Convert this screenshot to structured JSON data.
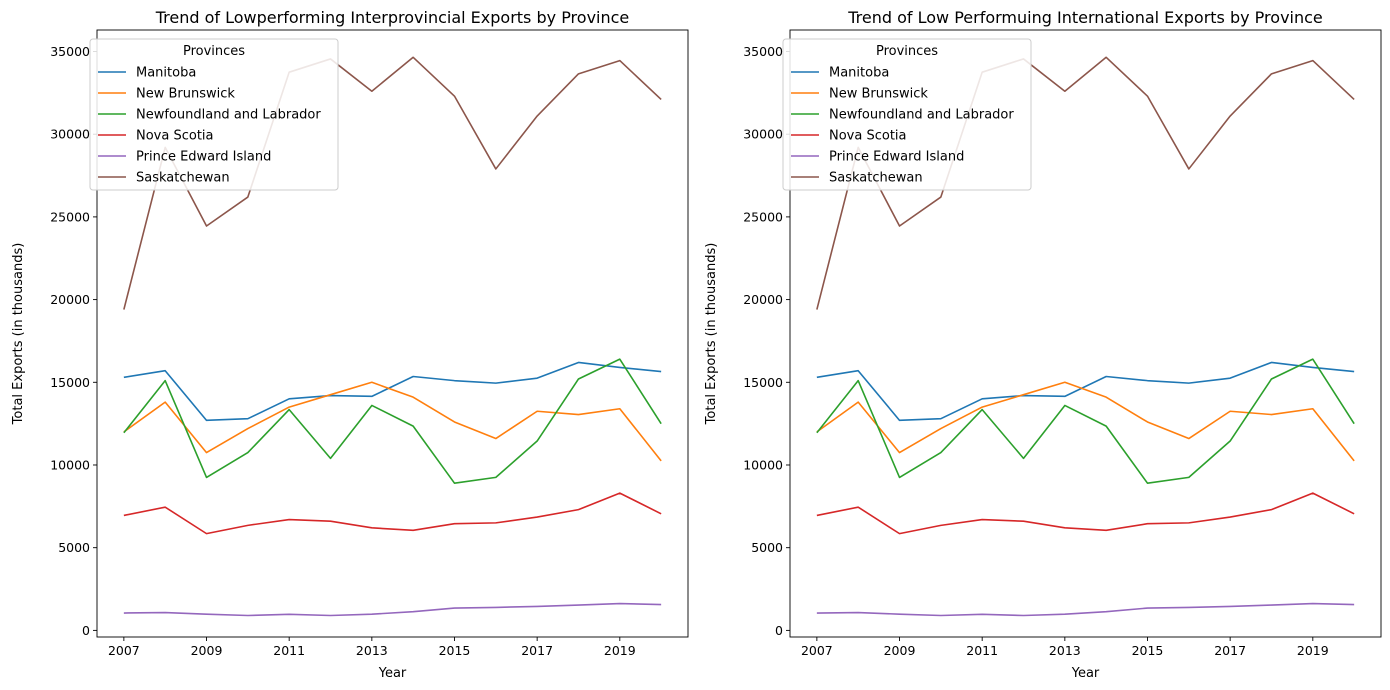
{
  "chart_data": [
    {
      "type": "line",
      "title": "Trend of Lowperforming Interprovincial Exports by Province",
      "xlabel": "Year",
      "ylabel": "Total Exports (in thousands)",
      "x": [
        2007,
        2008,
        2009,
        2010,
        2011,
        2012,
        2013,
        2014,
        2015,
        2016,
        2017,
        2018,
        2019,
        2020
      ],
      "xticks": [
        2007,
        2009,
        2011,
        2013,
        2015,
        2017,
        2019
      ],
      "xticklabels": [
        "2007",
        "2009",
        "2011",
        "2013",
        "2015",
        "2017",
        "2019"
      ],
      "yticks": [
        0,
        5000,
        10000,
        15000,
        20000,
        25000,
        30000,
        35000
      ],
      "yticklabels": [
        "0",
        "5000",
        "10000",
        "15000",
        "20000",
        "25000",
        "30000",
        "35000"
      ],
      "xlim": [
        2006.35,
        2020.65
      ],
      "ylim": [
        -400,
        36300
      ],
      "grid": false,
      "legend": {
        "title": "Provinces",
        "placement": "upper-left"
      },
      "series": [
        {
          "name": "Manitoba",
          "color": "#1f77b4",
          "values": [
            15300,
            15700,
            12700,
            12800,
            14000,
            14200,
            14150,
            15350,
            15100,
            14950,
            15250,
            16200,
            15900,
            15650
          ]
        },
        {
          "name": "New Brunswick",
          "color": "#ff7f0e",
          "values": [
            12000,
            13800,
            10750,
            12200,
            13500,
            14250,
            15000,
            14100,
            12600,
            11600,
            13250,
            13050,
            13400,
            10250
          ]
        },
        {
          "name": "Newfoundland and Labrador",
          "color": "#2ca02c",
          "values": [
            11950,
            15100,
            9250,
            10750,
            13350,
            10400,
            13600,
            12350,
            8900,
            9250,
            11450,
            15200,
            16400,
            12500
          ]
        },
        {
          "name": "Nova Scotia",
          "color": "#d62728",
          "values": [
            6950,
            7450,
            5850,
            6350,
            6700,
            6600,
            6200,
            6050,
            6450,
            6500,
            6850,
            7300,
            8300,
            7050
          ]
        },
        {
          "name": "Prince Edward Island",
          "color": "#9467bd",
          "values": [
            1050,
            1080,
            980,
            900,
            970,
            900,
            980,
            1130,
            1350,
            1390,
            1450,
            1530,
            1620,
            1560
          ]
        },
        {
          "name": "Saskatchewan",
          "color": "#8c564b",
          "values": [
            19400,
            29200,
            24450,
            26200,
            33750,
            34550,
            32600,
            34650,
            32300,
            27900,
            31100,
            33650,
            34450,
            32100
          ]
        }
      ]
    },
    {
      "type": "line",
      "title": "Trend of Low Performuing International Exports by Province",
      "xlabel": "Year",
      "ylabel": "Total Exports (in thousands)",
      "x": [
        2007,
        2008,
        2009,
        2010,
        2011,
        2012,
        2013,
        2014,
        2015,
        2016,
        2017,
        2018,
        2019,
        2020
      ],
      "xticks": [
        2007,
        2009,
        2011,
        2013,
        2015,
        2017,
        2019
      ],
      "xticklabels": [
        "2007",
        "2009",
        "2011",
        "2013",
        "2015",
        "2017",
        "2019"
      ],
      "yticks": [
        0,
        5000,
        10000,
        15000,
        20000,
        25000,
        30000,
        35000
      ],
      "yticklabels": [
        "0",
        "5000",
        "10000",
        "15000",
        "20000",
        "25000",
        "30000",
        "35000"
      ],
      "xlim": [
        2006.35,
        2020.65
      ],
      "ylim": [
        -400,
        36300
      ],
      "grid": false,
      "legend": {
        "title": "Provinces",
        "placement": "upper-left"
      },
      "series": [
        {
          "name": "Manitoba",
          "color": "#1f77b4",
          "values": [
            15300,
            15700,
            12700,
            12800,
            14000,
            14200,
            14150,
            15350,
            15100,
            14950,
            15250,
            16200,
            15900,
            15650
          ]
        },
        {
          "name": "New Brunswick",
          "color": "#ff7f0e",
          "values": [
            12000,
            13800,
            10750,
            12200,
            13500,
            14250,
            15000,
            14100,
            12600,
            11600,
            13250,
            13050,
            13400,
            10250
          ]
        },
        {
          "name": "Newfoundland and Labrador",
          "color": "#2ca02c",
          "values": [
            11950,
            15100,
            9250,
            10750,
            13350,
            10400,
            13600,
            12350,
            8900,
            9250,
            11450,
            15200,
            16400,
            12500
          ]
        },
        {
          "name": "Nova Scotia",
          "color": "#d62728",
          "values": [
            6950,
            7450,
            5850,
            6350,
            6700,
            6600,
            6200,
            6050,
            6450,
            6500,
            6850,
            7300,
            8300,
            7050
          ]
        },
        {
          "name": "Prince Edward Island",
          "color": "#9467bd",
          "values": [
            1050,
            1080,
            980,
            900,
            970,
            900,
            980,
            1130,
            1350,
            1390,
            1450,
            1530,
            1620,
            1560
          ]
        },
        {
          "name": "Saskatchewan",
          "color": "#8c564b",
          "values": [
            19400,
            29200,
            24450,
            26200,
            33750,
            34550,
            32600,
            34650,
            32300,
            27900,
            31100,
            33650,
            34450,
            32100
          ]
        }
      ]
    }
  ]
}
